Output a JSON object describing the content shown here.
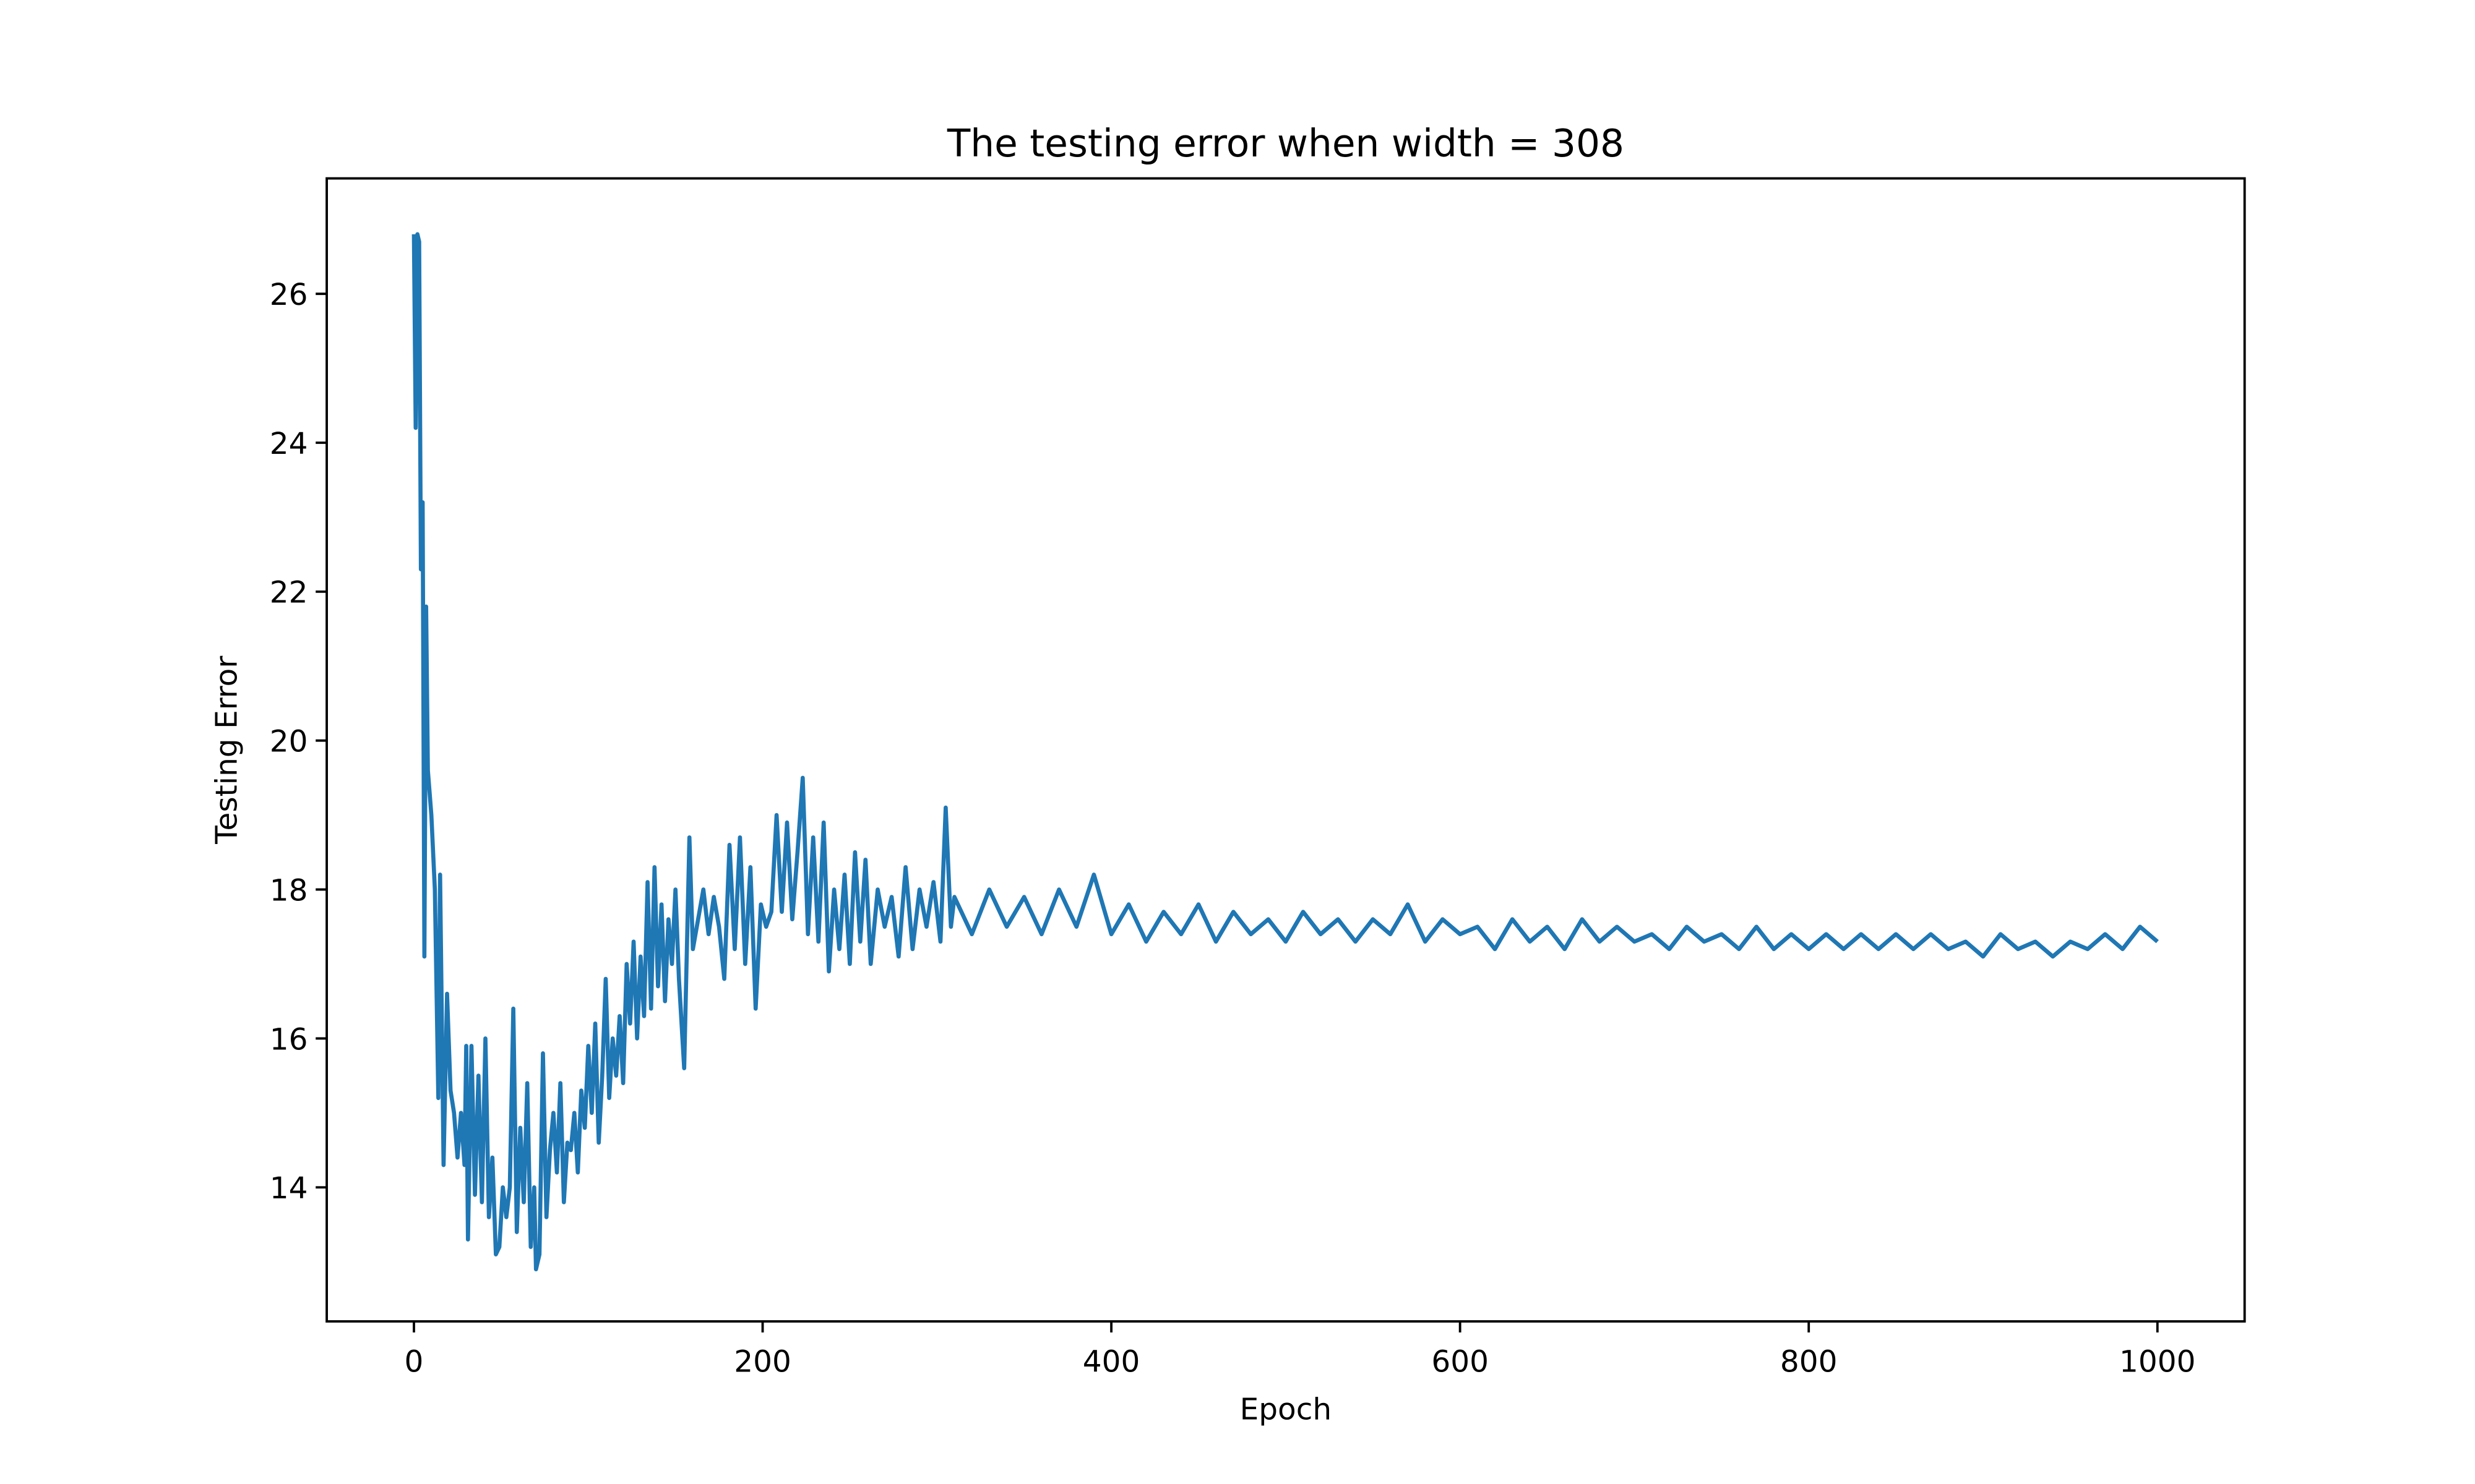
{
  "chart_data": {
    "type": "line",
    "title": "The testing error when width = 308",
    "x_label": "Epoch",
    "y_label": "Testing Error",
    "x": [
      0,
      1,
      2,
      3,
      4,
      5,
      6,
      7,
      8,
      10,
      12,
      14,
      15,
      17,
      19,
      21,
      23,
      25,
      27,
      29,
      30,
      31,
      33,
      35,
      37,
      39,
      41,
      43,
      45,
      47,
      49,
      51,
      53,
      55,
      57,
      59,
      61,
      63,
      65,
      67,
      69,
      70,
      72,
      74,
      76,
      78,
      80,
      82,
      84,
      86,
      88,
      90,
      92,
      94,
      96,
      98,
      100,
      102,
      104,
      106,
      108,
      110,
      112,
      114,
      116,
      118,
      120,
      122,
      124,
      126,
      128,
      130,
      132,
      134,
      136,
      138,
      140,
      142,
      144,
      146,
      148,
      150,
      152,
      155,
      158,
      160,
      163,
      166,
      169,
      172,
      175,
      178,
      181,
      184,
      187,
      190,
      193,
      196,
      199,
      202,
      205,
      208,
      211,
      214,
      217,
      220,
      223,
      226,
      229,
      232,
      235,
      238,
      241,
      244,
      247,
      250,
      253,
      256,
      259,
      262,
      266,
      270,
      274,
      278,
      282,
      286,
      290,
      294,
      298,
      302,
      305,
      308,
      310,
      320,
      330,
      340,
      350,
      360,
      370,
      380,
      390,
      400,
      410,
      420,
      430,
      440,
      450,
      460,
      470,
      480,
      490,
      500,
      510,
      520,
      530,
      540,
      550,
      560,
      570,
      580,
      590,
      600,
      610,
      620,
      630,
      640,
      650,
      660,
      670,
      680,
      690,
      700,
      710,
      720,
      730,
      740,
      750,
      760,
      770,
      780,
      790,
      800,
      810,
      820,
      830,
      840,
      850,
      860,
      870,
      880,
      890,
      900,
      910,
      920,
      930,
      940,
      950,
      960,
      970,
      980,
      990,
      1000
    ],
    "series": [
      {
        "color": "#1f77b4",
        "values": [
          26.8,
          24.2,
          26.8,
          26.7,
          22.3,
          23.2,
          17.1,
          21.8,
          19.6,
          19.0,
          18.0,
          15.2,
          18.2,
          14.3,
          16.6,
          15.3,
          15.0,
          14.4,
          15.0,
          14.3,
          15.9,
          13.3,
          15.9,
          13.9,
          15.5,
          13.8,
          16.0,
          13.6,
          14.4,
          13.1,
          13.2,
          14.0,
          13.6,
          14.0,
          16.4,
          13.4,
          14.8,
          13.8,
          15.4,
          13.2,
          14.0,
          12.9,
          13.1,
          15.8,
          13.6,
          14.5,
          15.0,
          14.2,
          15.4,
          13.8,
          14.6,
          14.5,
          15.0,
          14.2,
          15.3,
          14.8,
          15.9,
          15.0,
          16.2,
          14.6,
          15.5,
          16.8,
          15.2,
          16.0,
          15.5,
          16.3,
          15.4,
          17.0,
          16.2,
          17.3,
          16.0,
          17.1,
          16.3,
          18.1,
          16.4,
          18.3,
          16.7,
          17.8,
          16.5,
          17.6,
          17.0,
          18.0,
          16.8,
          15.6,
          18.7,
          17.2,
          17.6,
          18.0,
          17.4,
          17.9,
          17.5,
          16.8,
          18.6,
          17.2,
          18.7,
          17.0,
          18.3,
          16.4,
          17.8,
          17.5,
          17.7,
          19.0,
          17.7,
          18.9,
          17.6,
          18.5,
          19.5,
          17.4,
          18.7,
          17.3,
          18.9,
          16.9,
          18.0,
          17.2,
          18.2,
          17.0,
          18.5,
          17.3,
          18.4,
          17.0,
          18.0,
          17.5,
          17.9,
          17.1,
          18.3,
          17.2,
          18.0,
          17.5,
          18.1,
          17.3,
          19.1,
          17.5,
          17.9,
          17.4,
          18.0,
          17.5,
          17.9,
          17.4,
          18.0,
          17.5,
          18.2,
          17.4,
          17.8,
          17.3,
          17.7,
          17.4,
          17.8,
          17.3,
          17.7,
          17.4,
          17.6,
          17.3,
          17.7,
          17.4,
          17.6,
          17.3,
          17.6,
          17.4,
          17.8,
          17.3,
          17.6,
          17.4,
          17.5,
          17.2,
          17.6,
          17.3,
          17.5,
          17.2,
          17.6,
          17.3,
          17.5,
          17.3,
          17.4,
          17.2,
          17.5,
          17.3,
          17.4,
          17.2,
          17.5,
          17.2,
          17.4,
          17.2,
          17.4,
          17.2,
          17.4,
          17.2,
          17.4,
          17.2,
          17.4,
          17.2,
          17.3,
          17.1,
          17.4,
          17.2,
          17.3,
          17.1,
          17.3,
          17.2,
          17.4,
          17.2,
          17.5,
          17.3
        ]
      }
    ],
    "xlim": [
      -50,
      1050
    ],
    "ylim": [
      12.2,
      27.55
    ],
    "xticks": [
      0,
      200,
      400,
      600,
      800,
      1000
    ],
    "yticks": [
      14,
      16,
      18,
      20,
      22,
      24,
      26
    ]
  }
}
